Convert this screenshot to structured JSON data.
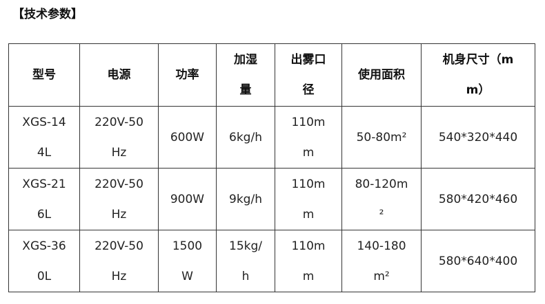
{
  "title": "【技术参数】",
  "headers": [
    [
      "型号"
    ],
    [
      "电源"
    ],
    [
      "功率"
    ],
    [
      "加湿",
      "量"
    ],
    [
      "出雾口",
      "径"
    ],
    [
      "使用面积"
    ],
    [
      "机身尺寸（m",
      "m）"
    ]
  ],
  "rows": [
    [
      [
        "XGS-14",
        "4L"
      ],
      [
        "220V-50",
        "Hz"
      ],
      [
        "600W"
      ],
      [
        "6kg/h"
      ],
      [
        "110m",
        "m"
      ],
      [
        "50-80m²"
      ],
      [
        "540*320*440"
      ]
    ],
    [
      [
        "XGS-21",
        "6L"
      ],
      [
        "220V-50",
        "Hz"
      ],
      [
        "900W"
      ],
      [
        "9kg/h"
      ],
      [
        "110m",
        "m"
      ],
      [
        "80-120m",
        "²"
      ],
      [
        "580*420*460"
      ]
    ],
    [
      [
        "XGS-36",
        "0L"
      ],
      [
        "220V-50",
        "Hz"
      ],
      [
        "1500",
        "W"
      ],
      [
        "15kg/",
        "h"
      ],
      [
        "110m",
        "m"
      ],
      [
        "140-180",
        "m²"
      ],
      [
        "580*640*400"
      ]
    ]
  ]
}
